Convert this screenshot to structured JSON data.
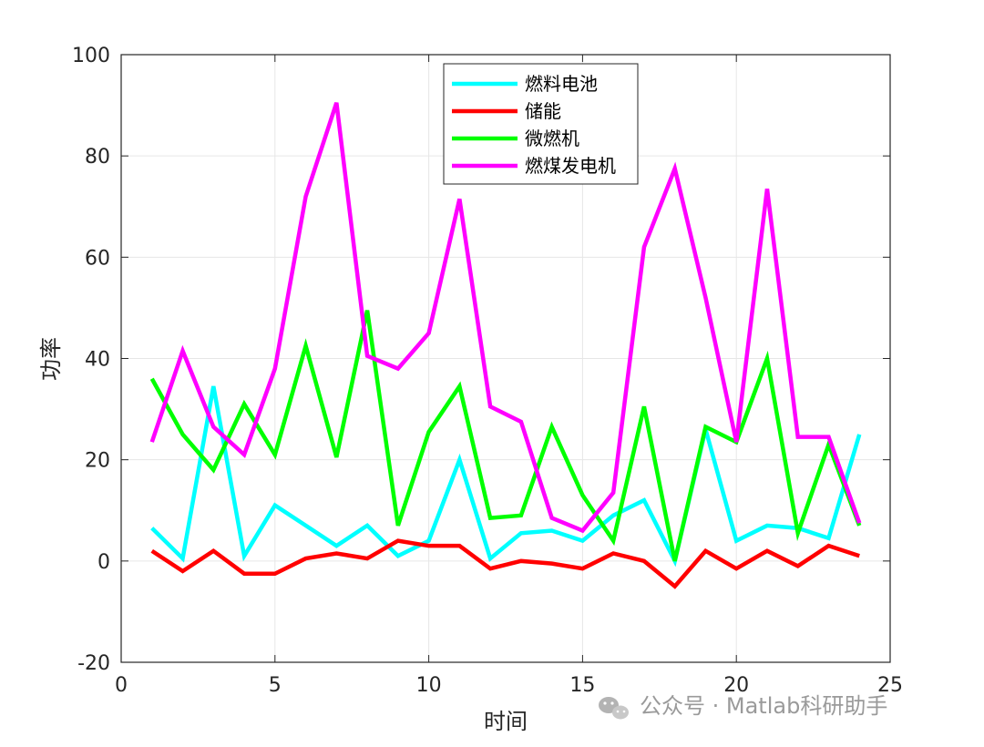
{
  "chart_data": {
    "type": "line",
    "title": "",
    "xlabel": "时间",
    "ylabel": "功率",
    "xlim": [
      0,
      25
    ],
    "ylim": [
      -20,
      100
    ],
    "xticks": [
      0,
      5,
      10,
      15,
      20,
      25
    ],
    "yticks": [
      -20,
      0,
      20,
      40,
      60,
      80,
      100
    ],
    "grid": true,
    "legend_position": "top-center",
    "x": [
      1,
      2,
      3,
      4,
      5,
      6,
      7,
      8,
      9,
      10,
      11,
      12,
      13,
      14,
      15,
      16,
      17,
      18,
      19,
      20,
      21,
      22,
      23,
      24
    ],
    "series": [
      {
        "name": "燃料电池",
        "color": "#00ffff",
        "values": [
          6.5,
          0.5,
          34.5,
          1,
          11,
          7,
          3,
          7,
          1,
          4,
          20,
          0.5,
          5.5,
          6,
          4,
          9,
          12,
          0,
          26,
          4,
          7,
          6.5,
          4.5,
          25
        ]
      },
      {
        "name": "储能",
        "color": "#ff0000",
        "values": [
          2,
          -2,
          2,
          -2.5,
          -2.5,
          0.5,
          1.5,
          0.5,
          4,
          3,
          3,
          -1.5,
          0,
          -0.5,
          -1.5,
          1.5,
          0,
          -5,
          2,
          -1.5,
          2,
          -1,
          3,
          1
        ]
      },
      {
        "name": "微燃机",
        "color": "#00ff00",
        "values": [
          36,
          25,
          18,
          31,
          21,
          42.5,
          20.5,
          49.5,
          7,
          25.5,
          34.5,
          8.5,
          9,
          26.5,
          13,
          4,
          30.5,
          0,
          26.5,
          23.5,
          40,
          5.5,
          23,
          7
        ]
      },
      {
        "name": "燃煤发电机",
        "color": "#ff00ff",
        "values": [
          23.5,
          41.5,
          26.5,
          21,
          38,
          72,
          90.5,
          40.5,
          38,
          45,
          71.5,
          30.5,
          27.5,
          8.5,
          6,
          13.5,
          62,
          77.5,
          52,
          23.5,
          73.5,
          24.5,
          24.5,
          7.5
        ]
      }
    ]
  },
  "watermark": {
    "text": "公众号 · Matlab科研助手",
    "icon": "wechat-icon"
  }
}
